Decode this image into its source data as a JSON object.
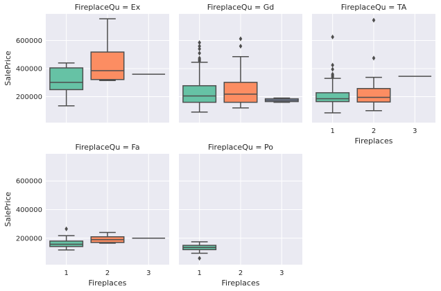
{
  "chart_data": {
    "type": "box",
    "facet_variable": "FireplaceQu",
    "xlabel": "Fireplaces",
    "ylabel": "SalePrice",
    "categories": [
      "1",
      "2",
      "3"
    ],
    "ylim": [
      15000,
      790000
    ],
    "yticks": [
      200000,
      400000,
      600000
    ],
    "grid": true,
    "palette": [
      "#66c2a5",
      "#fc8d62",
      "#8da0cb"
    ],
    "panels": [
      {
        "title": "FireplaceQu = Ex",
        "boxes": [
          {
            "category": "1",
            "whislo": 135000,
            "q1": 250000,
            "med": 302000,
            "q3": 405000,
            "whishi": 440000,
            "fliers": []
          },
          {
            "category": "2",
            "whislo": 315000,
            "q1": 322000,
            "med": 385000,
            "q3": 518000,
            "whishi": 755000,
            "fliers": []
          },
          {
            "category": "3",
            "whislo": 360000,
            "q1": 360000,
            "med": 360000,
            "q3": 360000,
            "whishi": 360000,
            "fliers": []
          }
        ]
      },
      {
        "title": "FireplaceQu = Gd",
        "boxes": [
          {
            "category": "1",
            "whislo": 90000,
            "q1": 160000,
            "med": 205000,
            "q3": 278000,
            "whishi": 445000,
            "fliers": [
              455000,
              465000,
              475000,
              510000,
              540000,
              560000,
              585000
            ]
          },
          {
            "category": "2",
            "whislo": 120000,
            "q1": 160000,
            "med": 218000,
            "q3": 302000,
            "whishi": 485000,
            "fliers": [
              560000,
              612000
            ]
          },
          {
            "category": "3",
            "whislo": 160000,
            "q1": 165000,
            "med": 175000,
            "q3": 185000,
            "whishi": 190000,
            "fliers": []
          }
        ]
      },
      {
        "title": "FireplaceQu = TA",
        "boxes": [
          {
            "category": "1",
            "whislo": 85000,
            "q1": 165000,
            "med": 185000,
            "q3": 228000,
            "whishi": 330000,
            "fliers": [
              340000,
              350000,
              360000,
              395000,
              425000,
              625000
            ]
          },
          {
            "category": "2",
            "whislo": 100000,
            "q1": 162000,
            "med": 195000,
            "q3": 258000,
            "whishi": 338000,
            "fliers": [
              475000,
              745000
            ]
          },
          {
            "category": "3",
            "whislo": 345000,
            "q1": 345000,
            "med": 345000,
            "q3": 345000,
            "whishi": 345000,
            "fliers": []
          }
        ]
      },
      {
        "title": "FireplaceQu = Fa",
        "boxes": [
          {
            "category": "1",
            "whislo": 118000,
            "q1": 142000,
            "med": 158000,
            "q3": 180000,
            "whishi": 218000,
            "fliers": [
              265000
            ]
          },
          {
            "category": "2",
            "whislo": 165000,
            "q1": 170000,
            "med": 190000,
            "q3": 210000,
            "whishi": 240000,
            "fliers": []
          },
          {
            "category": "3",
            "whislo": 200000,
            "q1": 200000,
            "med": 200000,
            "q3": 200000,
            "whishi": 200000,
            "fliers": []
          }
        ]
      },
      {
        "title": "FireplaceQu = Po",
        "boxes": [
          {
            "category": "1",
            "whislo": 95000,
            "q1": 120000,
            "med": 135000,
            "q3": 150000,
            "whishi": 175000,
            "fliers": [
              60000
            ]
          }
        ]
      }
    ]
  }
}
